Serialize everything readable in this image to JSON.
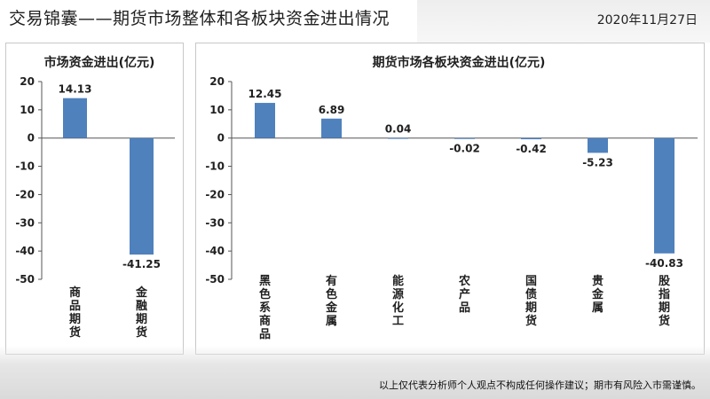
{
  "header": {
    "title": "交易锦囊——期货市场整体和各板块资金进出情况",
    "date": "2020年11月27日"
  },
  "footer": {
    "disclaimer": "以上仅代表分析师个人观点不构成任何操作建议；期市有风险入市需谨慎。"
  },
  "colors": {
    "bar": "#4f81bd",
    "axis": "#555555",
    "text": "#1f1f1f"
  },
  "chart_data": [
    {
      "type": "bar",
      "title": "市场资金进出(亿元)",
      "categories": [
        "商品期货",
        "金融期货"
      ],
      "values": [
        14.13,
        -41.25
      ],
      "data_labels": [
        "14.13",
        "-41.25"
      ],
      "ylim": [
        -50,
        20
      ],
      "yticks": [
        20,
        10,
        0,
        -10,
        -20,
        -30,
        -40,
        -50
      ],
      "grid": false,
      "legend": "none"
    },
    {
      "type": "bar",
      "title": "期货市场各板块资金进出(亿元)",
      "categories": [
        "黑色系商品",
        "有色金属",
        "能源化工",
        "农产品",
        "国债期货",
        "贵金属",
        "股指期货"
      ],
      "values": [
        12.45,
        6.89,
        0.04,
        -0.02,
        -0.42,
        -5.23,
        -40.83
      ],
      "data_labels": [
        "12.45",
        "6.89",
        "0.04",
        "-0.02",
        "-0.42",
        "-5.23",
        "-40.83"
      ],
      "ylim": [
        -50,
        20
      ],
      "yticks": [
        20,
        10,
        0,
        -10,
        -20,
        -30,
        -40,
        -50
      ],
      "grid": false,
      "legend": "none"
    }
  ]
}
